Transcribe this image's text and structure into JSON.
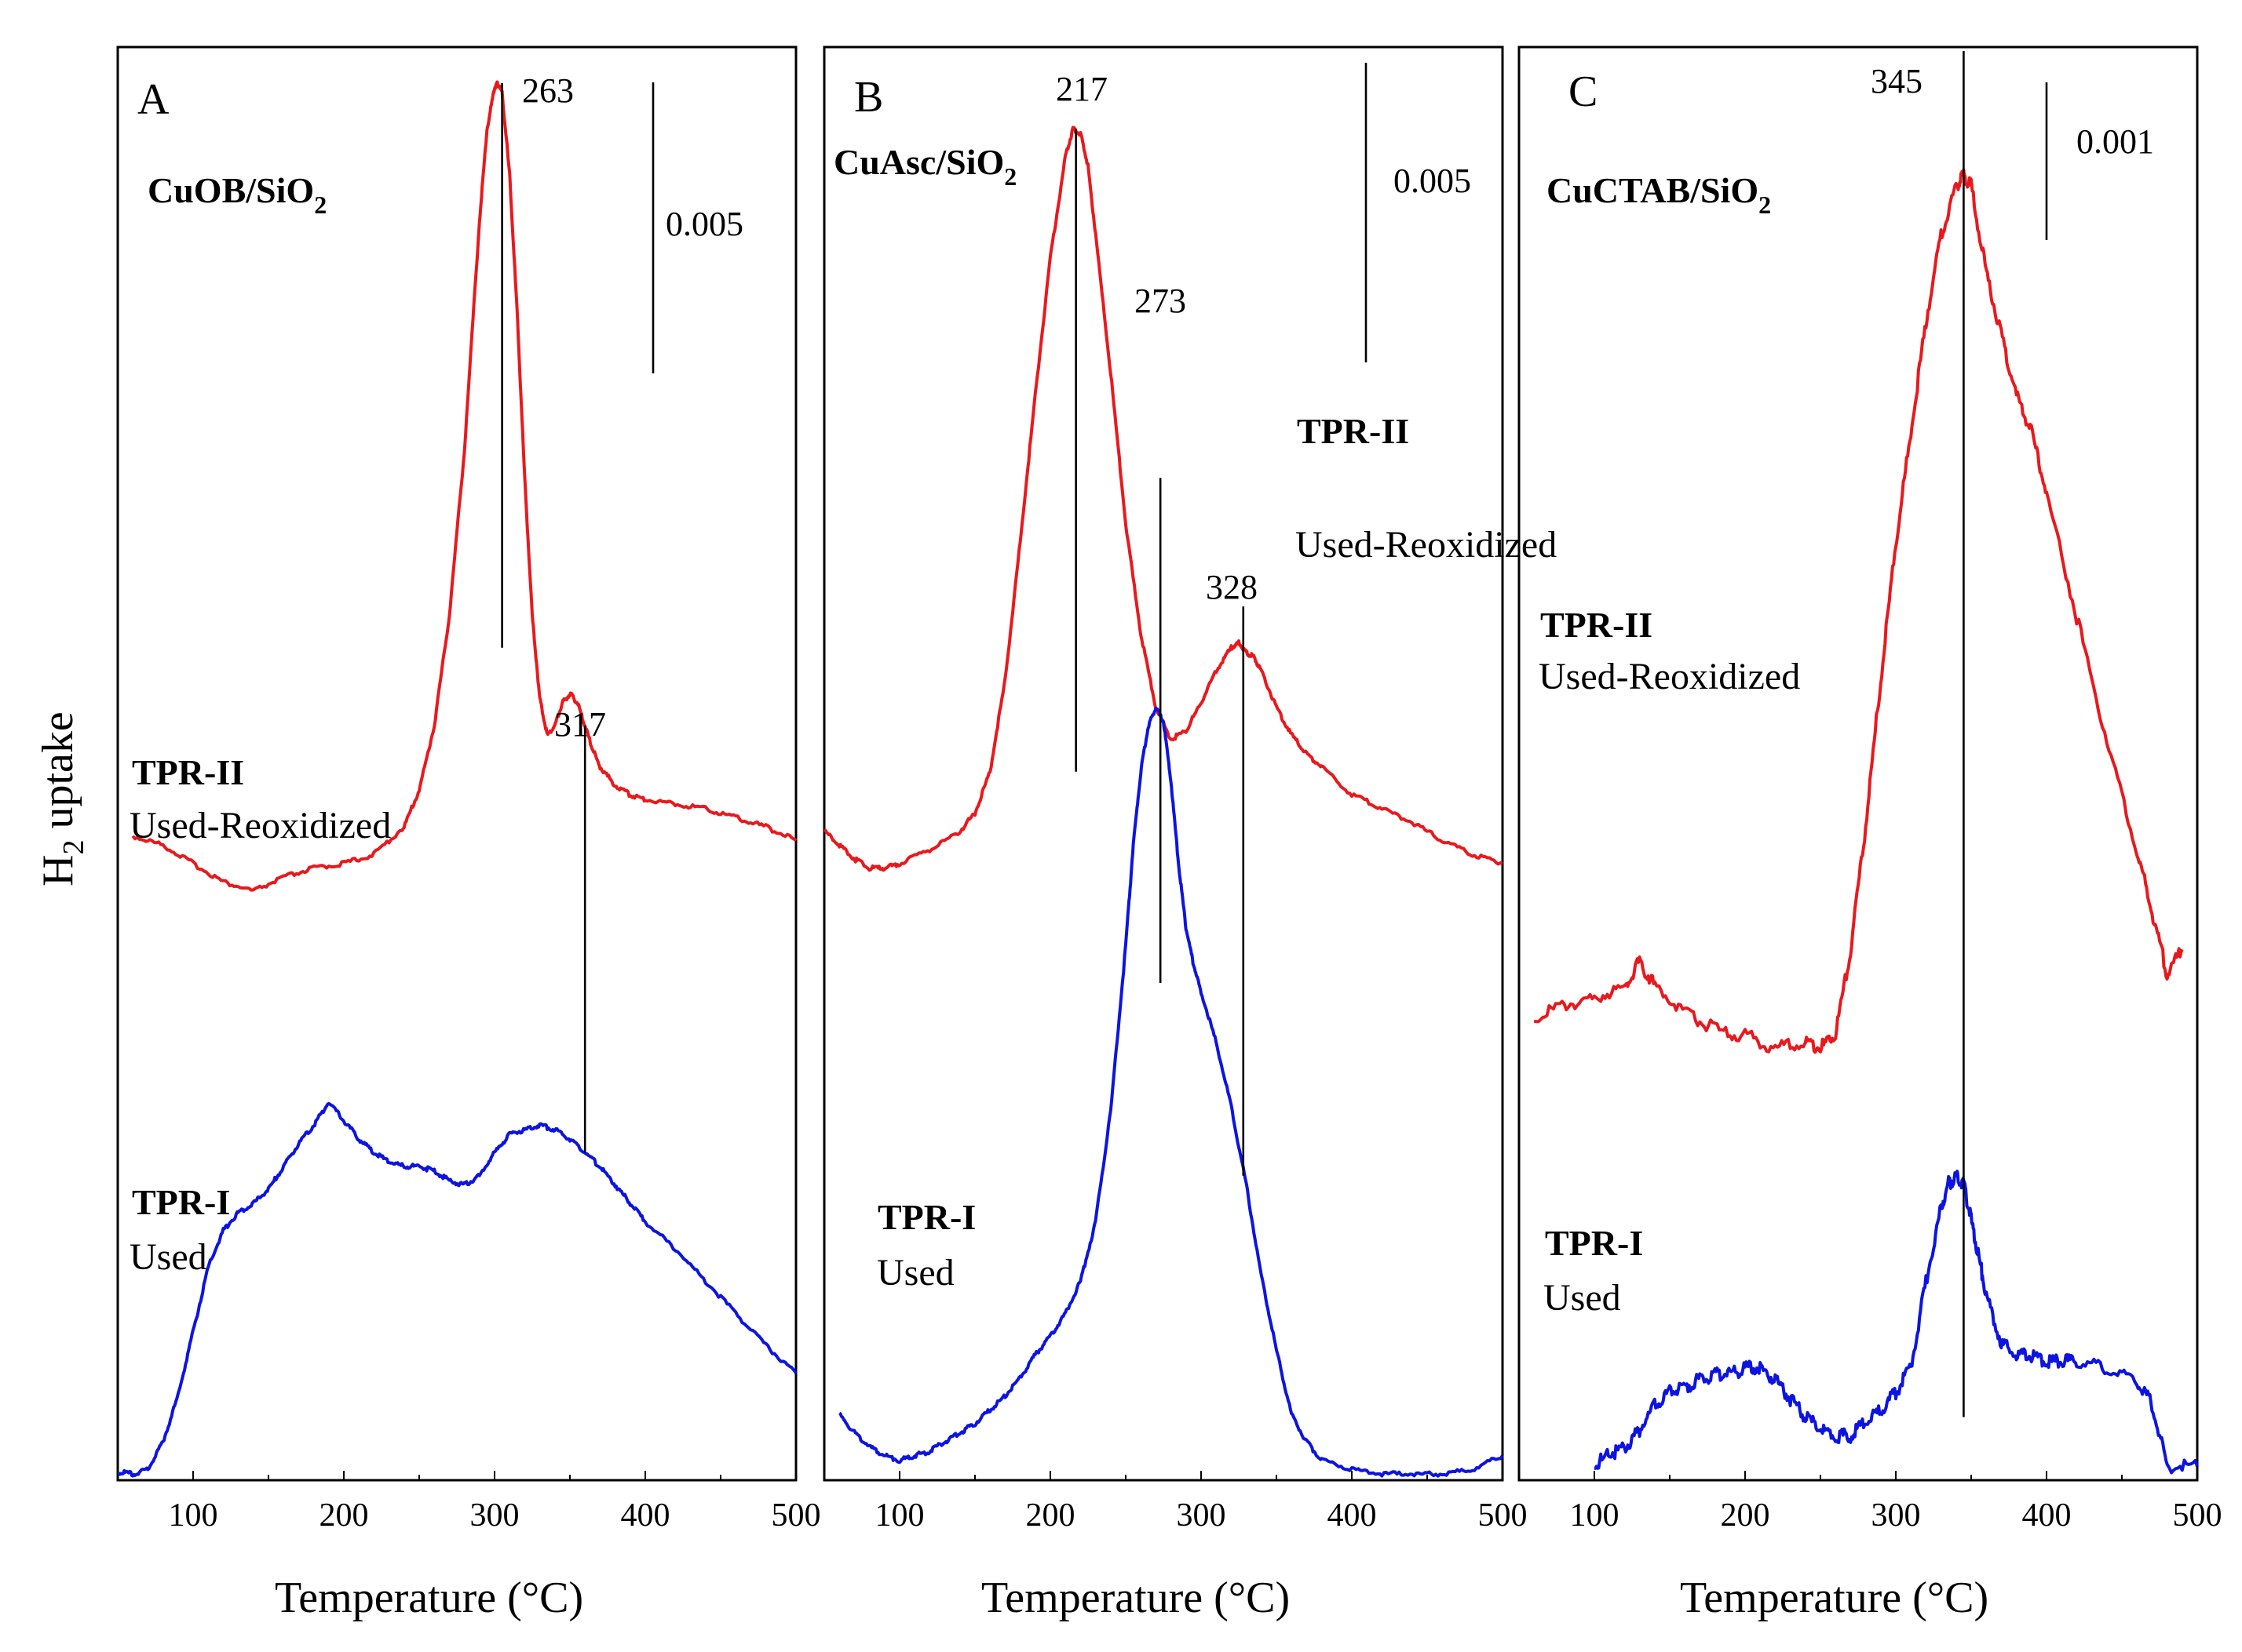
{
  "y_axis_label": {
    "main": "H",
    "sub": "2",
    "rest": " uptake"
  },
  "chart_data": [
    {
      "type": "line",
      "panel": "A",
      "sample": {
        "main": "CuOB/SiO",
        "sub": "2"
      },
      "xlabel": "Temperature (°C)",
      "xlim": [
        50,
        500
      ],
      "xticks": [
        "100",
        "200",
        "300",
        "400",
        "500"
      ],
      "scale_bar": "0.005",
      "series": [
        {
          "name": "TPR-II",
          "sublabel": "Used-Reoxidized",
          "color": "#e8191d",
          "x": [
            60,
            80,
            100,
            120,
            140,
            160,
            180,
            200,
            220,
            240,
            250,
            260,
            270,
            280,
            290,
            295,
            300,
            302,
            305,
            310,
            315,
            320,
            325,
            330,
            335,
            340,
            345,
            350,
            355,
            360,
            365,
            370,
            380,
            390,
            400,
            420,
            440,
            460,
            480,
            500
          ],
          "y": [
            0.0014,
            0.0012,
            0.0008,
            0.0004,
            0.0002,
            0.0005,
            0.0007,
            0.0008,
            0.001,
            0.0016,
            0.0024,
            0.0038,
            0.0062,
            0.0098,
            0.0148,
            0.0168,
            0.0177,
            0.0178,
            0.0176,
            0.0158,
            0.0128,
            0.0092,
            0.0062,
            0.0044,
            0.0036,
            0.0038,
            0.0043,
            0.0045,
            0.0043,
            0.0038,
            0.0033,
            0.0029,
            0.0025,
            0.0023,
            0.0022,
            0.0021,
            0.002,
            0.0018,
            0.0016,
            0.0013
          ]
        },
        {
          "name": "TPR-I",
          "sublabel": "Used",
          "color": "#0d14e0",
          "x": [
            50,
            60,
            70,
            80,
            90,
            100,
            110,
            120,
            130,
            140,
            150,
            160,
            170,
            180,
            190,
            200,
            210,
            220,
            230,
            240,
            250,
            260,
            270,
            280,
            290,
            300,
            310,
            320,
            330,
            340,
            350,
            360,
            370,
            380,
            390,
            400,
            420,
            440,
            460,
            480,
            500
          ],
          "y": [
            -0.01245,
            -0.0125,
            -0.0124,
            -0.0118,
            -0.0108,
            -0.0094,
            -0.008,
            -0.0072,
            -0.0068,
            -0.0066,
            -0.0063,
            -0.0058,
            -0.0053,
            -0.0049,
            -0.0044,
            -0.0048,
            -0.0052,
            -0.0055,
            -0.0057,
            -0.0058,
            -0.0058,
            -0.0059,
            -0.0061,
            -0.0062,
            -0.006,
            -0.0055,
            -0.0051,
            -0.005,
            -0.0049,
            -0.005,
            -0.0052,
            -0.0055,
            -0.0058,
            -0.0062,
            -0.0066,
            -0.007,
            -0.0076,
            -0.0083,
            -0.009,
            -0.0097,
            -0.0103
          ]
        }
      ],
      "ylim": [
        -0.0126,
        0.0185
      ],
      "annotations": [
        "263",
        "317"
      ],
      "peaks": [
        {
          "x": 305,
          "y_top": 0.0178,
          "y_bottom": 0.0055
        },
        {
          "x": 360,
          "y_top": 0.0038,
          "y_bottom": -0.0055
        }
      ]
    },
    {
      "type": "line",
      "panel": "B",
      "sample": {
        "main": "CuAsc/SiO",
        "sub": "2"
      },
      "xlabel": "Temperature (°C)",
      "xlim": [
        50,
        500
      ],
      "xticks": [
        "100",
        "200",
        "300",
        "400",
        "500"
      ],
      "scale_bar": "0.005",
      "series": [
        {
          "name": "TPR-II",
          "sublabel": "Used-Reoxidized",
          "color": "#e8191d",
          "x": [
            50,
            60,
            70,
            80,
            90,
            100,
            120,
            140,
            150,
            160,
            170,
            180,
            190,
            200,
            210,
            215,
            220,
            225,
            230,
            240,
            250,
            260,
            270,
            280,
            290,
            300,
            310,
            320,
            325,
            330,
            335,
            340,
            350,
            360,
            370,
            380,
            400,
            420,
            440,
            460,
            480,
            500
          ],
          "y": [
            0.0015,
            0.0012,
            0.0009,
            0.0007,
            0.0007,
            0.0008,
            0.0011,
            0.0015,
            0.0019,
            0.0028,
            0.0048,
            0.0078,
            0.011,
            0.014,
            0.0162,
            0.0168,
            0.0167,
            0.016,
            0.0145,
            0.0115,
            0.0082,
            0.0058,
            0.0042,
            0.0035,
            0.0037,
            0.0043,
            0.005,
            0.0055,
            0.0056,
            0.0054,
            0.0053,
            0.005,
            0.0042,
            0.0036,
            0.0032,
            0.0029,
            0.0023,
            0.002,
            0.0017,
            0.0013,
            0.001,
            0.0008
          ]
        },
        {
          "name": "TPR-I",
          "sublabel": "Used",
          "color": "#0d14e0",
          "x": [
            60,
            70,
            80,
            90,
            100,
            110,
            120,
            130,
            140,
            150,
            160,
            170,
            180,
            190,
            200,
            210,
            220,
            230,
            240,
            250,
            255,
            260,
            265,
            270,
            275,
            280,
            285,
            290,
            295,
            300,
            310,
            320,
            330,
            340,
            350,
            360,
            370,
            380,
            400,
            420,
            440,
            460,
            480,
            500
          ],
          "y": [
            -0.0112,
            -0.0116,
            -0.0119,
            -0.0121,
            -0.0122,
            -0.0121,
            -0.012,
            -0.0118,
            -0.0116,
            -0.0114,
            -0.0111,
            -0.0108,
            -0.0104,
            -0.0099,
            -0.0095,
            -0.009,
            -0.0083,
            -0.007,
            -0.0046,
            -0.001,
            0.0012,
            0.0028,
            0.0038,
            0.0042,
            0.0039,
            0.0026,
            0.0008,
            -0.0006,
            -0.0014,
            -0.002,
            -0.0031,
            -0.0045,
            -0.0062,
            -0.0082,
            -0.0098,
            -0.0112,
            -0.0118,
            -0.0122,
            -0.0124,
            -0.0125,
            -0.0125,
            -0.0125,
            -0.0124,
            -0.0121
          ]
        }
      ],
      "ylim": [
        -0.0126,
        0.0185
      ],
      "annotations": [
        "217",
        "273",
        "328"
      ],
      "peaks": [
        {
          "x": 217,
          "y_top": 0.0168,
          "y_bottom": 0.0028
        },
        {
          "x": 273,
          "y_top": 0.0092,
          "y_bottom": -0.0018
        },
        {
          "x": 328,
          "y_top": 0.0064,
          "y_bottom": -0.006
        }
      ]
    },
    {
      "type": "line",
      "panel": "C",
      "sample": {
        "main": "CuCTAB/SiO",
        "sub": "2"
      },
      "xlabel": "Temperature (°C)",
      "xlim": [
        50,
        500
      ],
      "xticks": [
        "100",
        "200",
        "300",
        "400",
        "500"
      ],
      "scale_bar": "0.001",
      "series": [
        {
          "name": "TPR-II",
          "sublabel": "Used-Reoxidized",
          "color": "#e8191d",
          "x": [
            60,
            80,
            100,
            120,
            130,
            140,
            160,
            180,
            200,
            220,
            240,
            250,
            260,
            270,
            280,
            290,
            300,
            310,
            320,
            330,
            340,
            345,
            350,
            360,
            370,
            380,
            390,
            400,
            420,
            440,
            460,
            470,
            480,
            490
          ],
          "y": [
            0.00195,
            0.00205,
            0.0021,
            0.0022,
            0.0024,
            0.0022,
            0.002,
            0.00185,
            0.0018,
            0.0017,
            0.00175,
            0.0017,
            0.0018,
            0.0025,
            0.0035,
            0.0047,
            0.0058,
            0.0067,
            0.0076,
            0.0083,
            0.0087,
            0.0088,
            0.0087,
            0.008,
            0.0075,
            0.007,
            0.0067,
            0.0062,
            0.0052,
            0.0042,
            0.0033,
            0.0028,
            0.0023,
            0.0025
          ]
        },
        {
          "name": "TPR-I",
          "sublabel": "Used",
          "color": "#0d14e0",
          "x": [
            100,
            110,
            120,
            130,
            140,
            150,
            160,
            170,
            180,
            190,
            200,
            210,
            220,
            230,
            240,
            250,
            260,
            270,
            280,
            290,
            300,
            310,
            320,
            330,
            335,
            340,
            345,
            350,
            355,
            360,
            370,
            380,
            390,
            400,
            410,
            420,
            440,
            460,
            470,
            480,
            500
          ],
          "y": [
            -0.0017,
            -0.0016,
            -0.00155,
            -0.0014,
            -0.0012,
            -0.0011,
            -0.00105,
            -0.001,
            -0.00095,
            -0.00095,
            -0.0009,
            -0.0009,
            -0.001,
            -0.00115,
            -0.0013,
            -0.0014,
            -0.00145,
            -0.00145,
            -0.00135,
            -0.00125,
            -0.0011,
            -0.0009,
            -0.0002,
            0.0004,
            0.0006,
            0.00065,
            0.0006,
            0.0003,
            0.0,
            -0.0003,
            -0.0007,
            -0.0008,
            -0.0008,
            -0.00085,
            -0.00085,
            -0.00085,
            -0.0009,
            -0.001,
            -0.0012,
            -0.0017,
            -0.0017
          ]
        }
      ],
      "ylim": [
        -0.0018,
        0.0098
      ],
      "annotations": [
        "345"
      ],
      "peaks": [
        {
          "x": 345,
          "y_top": 0.0098,
          "y_bottom": -0.0013
        }
      ]
    }
  ]
}
